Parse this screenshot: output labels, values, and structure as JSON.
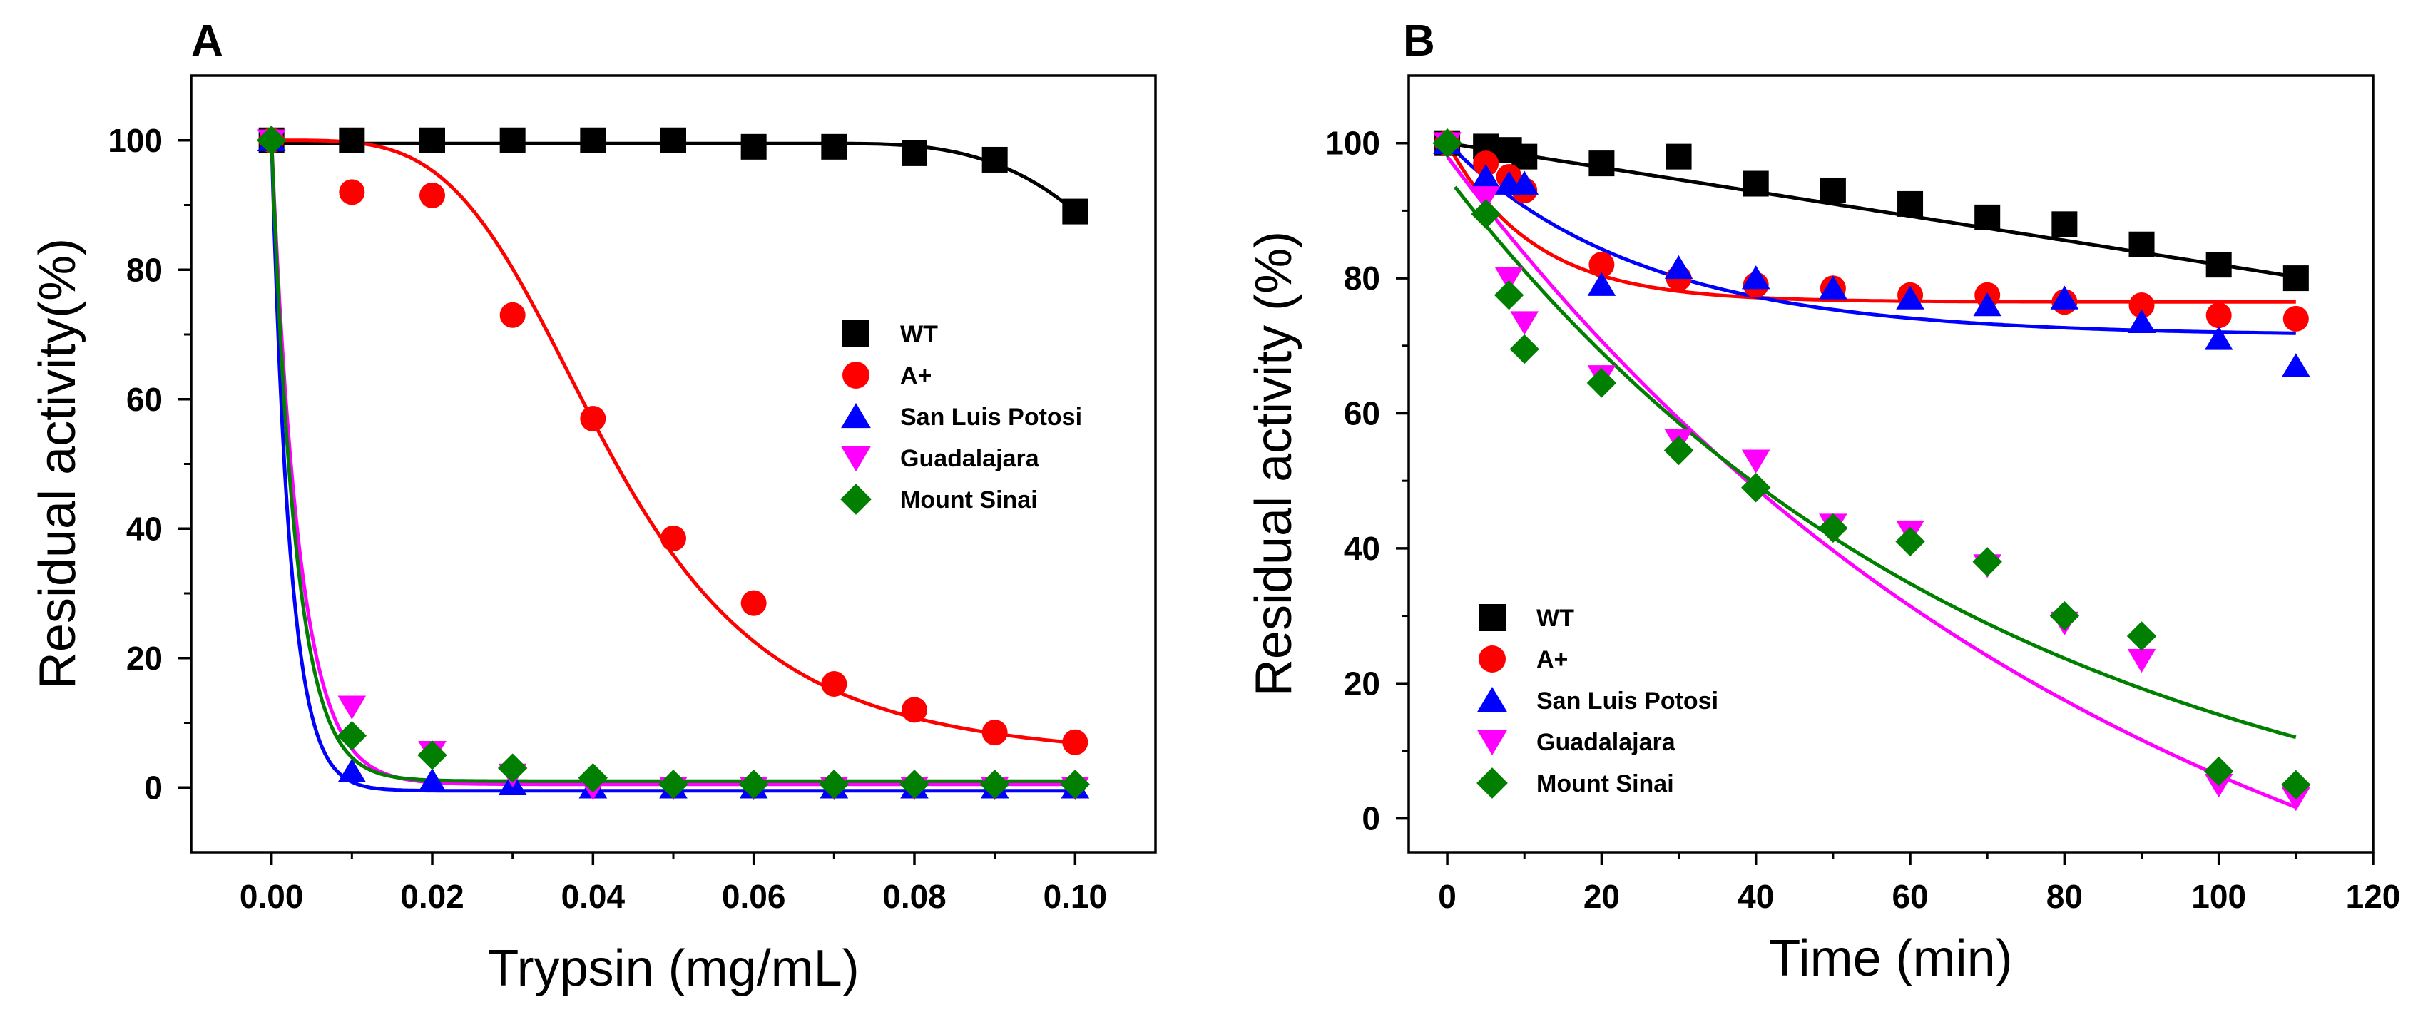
{
  "chart_data": [
    {
      "type": "scatter",
      "panel_label": "A",
      "title": "",
      "xlabel": "Trypsin (mg/mL)",
      "ylabel": "Residual activity(%)",
      "xlim": [
        -0.01,
        0.11
      ],
      "ylim": [
        -10,
        110
      ],
      "xticks": [
        0.0,
        0.02,
        0.04,
        0.06,
        0.08,
        0.1
      ],
      "xtick_labels": [
        "0.00",
        "0.02",
        "0.04",
        "0.06",
        "0.08",
        "0.10"
      ],
      "yticks": [
        0,
        20,
        40,
        60,
        80,
        100
      ],
      "ytick_labels": [
        "0",
        "20",
        "40",
        "60",
        "80",
        "100"
      ],
      "grid": false,
      "legend_position": "center-right",
      "x": [
        0.0,
        0.01,
        0.02,
        0.03,
        0.04,
        0.05,
        0.06,
        0.07,
        0.08,
        0.09,
        0.1
      ],
      "series": [
        {
          "name": "WT",
          "color": "#000000",
          "marker": "square",
          "model": "wt_trypsin",
          "values": [
            100,
            100,
            100,
            100,
            100,
            100,
            99,
            99,
            98,
            97,
            89
          ]
        },
        {
          "name": "A+",
          "color": "#ff0000",
          "marker": "circle",
          "model": "sigmoid_a",
          "values": [
            100,
            92,
            91.5,
            73,
            57,
            38.5,
            28.5,
            16,
            12,
            8.5,
            7
          ]
        },
        {
          "name": "San Luis Potosi",
          "color": "#0000ff",
          "marker": "triangle-up",
          "model": "exp_decay",
          "k": 430,
          "floor": -0.5,
          "values": [
            100,
            2.5,
            1,
            0.5,
            0,
            0,
            0,
            0,
            0,
            0,
            0
          ]
        },
        {
          "name": "Guadalajara",
          "color": "#ff00ff",
          "marker": "triangle-down",
          "model": "exp_decay",
          "k": 290,
          "floor": 0.5,
          "values": [
            100,
            12.5,
            5.5,
            2,
            0,
            0,
            0,
            0,
            0,
            0,
            0
          ]
        },
        {
          "name": "Mount Sinai",
          "color": "#007f00",
          "marker": "diamond",
          "model": "exp_decay",
          "k": 330,
          "floor": 1,
          "values": [
            100,
            8,
            5,
            3,
            1.5,
            0.5,
            0.5,
            0.5,
            0.5,
            0.5,
            0.5
          ]
        }
      ]
    },
    {
      "type": "scatter",
      "panel_label": "B",
      "title": "",
      "xlabel": "Time (min)",
      "ylabel": "Residual activity (%)",
      "xlim": [
        -5,
        120
      ],
      "ylim": [
        -5,
        110
      ],
      "xticks": [
        0,
        20,
        40,
        60,
        80,
        100,
        120
      ],
      "xtick_labels": [
        "0",
        "20",
        "40",
        "60",
        "80",
        "100",
        "120"
      ],
      "yticks": [
        0,
        20,
        40,
        60,
        80,
        100
      ],
      "ytick_labels": [
        "0",
        "20",
        "40",
        "60",
        "80",
        "100"
      ],
      "grid": false,
      "legend_position": "bottom-left",
      "series": [
        {
          "name": "WT",
          "color": "#000000",
          "marker": "square",
          "model": "linear",
          "start": 100,
          "slope": -0.18,
          "fit_x0": 0,
          "x": [
            0,
            5,
            8,
            10,
            20,
            30,
            40,
            50,
            60,
            70,
            80,
            90,
            100,
            110
          ],
          "values": [
            100,
            99.5,
            99,
            98,
            97,
            98,
            94,
            93,
            91,
            89,
            88,
            85,
            82,
            80
          ]
        },
        {
          "name": "A+",
          "color": "#ff0000",
          "marker": "circle",
          "model": "exp_plateau",
          "plateau": 76.5,
          "amp": 23.5,
          "k": 0.09,
          "fit_x0": 0,
          "x": [
            0,
            5,
            8,
            10,
            20,
            30,
            40,
            50,
            60,
            70,
            80,
            90,
            100,
            110
          ],
          "values": [
            100,
            97,
            95,
            93,
            82,
            80,
            79,
            78.5,
            77.5,
            77.5,
            76.5,
            76,
            74.5,
            74
          ]
        },
        {
          "name": "San Luis Potosi",
          "color": "#0000ff",
          "marker": "triangle-up",
          "model": "exp_plateau",
          "plateau": 71.5,
          "amp": 28.5,
          "k": 0.04,
          "fit_x0": 0,
          "x": [
            0,
            5,
            8,
            10,
            20,
            30,
            40,
            50,
            60,
            70,
            80,
            90,
            100,
            110
          ],
          "values": [
            100,
            95,
            94,
            94,
            79,
            81.5,
            80,
            78.5,
            77,
            76,
            77,
            73.5,
            71,
            67
          ]
        },
        {
          "name": "Guadalajara",
          "color": "#ff00ff",
          "marker": "triangle-down",
          "model": "exp_plateau",
          "plateau": -38,
          "amp": 136,
          "k": 0.0112,
          "fit_x0": 0,
          "x": [
            0,
            5,
            8,
            10,
            20,
            30,
            40,
            50,
            60,
            70,
            80,
            90,
            100,
            110
          ],
          "values": [
            100,
            92,
            80,
            73.5,
            65.5,
            56,
            53,
            43.5,
            42.5,
            37.5,
            29,
            23.5,
            5,
            3
          ]
        },
        {
          "name": "Mount Sinai",
          "color": "#007f00",
          "marker": "diamond",
          "model": "exp_plateau",
          "plateau": -10,
          "amp": 105,
          "k": 0.0142,
          "fit_x0": 1,
          "x": [
            0,
            5,
            8,
            10,
            20,
            30,
            40,
            50,
            60,
            70,
            80,
            90,
            100,
            110
          ],
          "values": [
            100,
            89.5,
            77.5,
            69.5,
            64.5,
            54.5,
            49,
            43,
            41,
            38,
            30,
            27,
            7,
            5
          ]
        }
      ]
    }
  ]
}
